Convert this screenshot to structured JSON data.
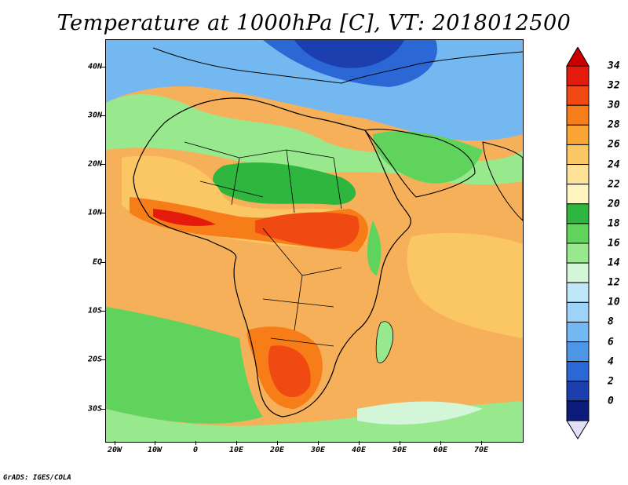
{
  "title": "Temperature at 1000hPa [C], VT: 2018012500",
  "credit": "GrADS: IGES/COLA",
  "map": {
    "lat_ticks": [
      "40N",
      "30N",
      "20N",
      "10N",
      "EQ",
      "10S",
      "20S",
      "30S"
    ],
    "lon_ticks": [
      "20W",
      "10W",
      "0",
      "10E",
      "20E",
      "30E",
      "40E",
      "50E",
      "60E",
      "70E"
    ],
    "lat_values": [
      40,
      30,
      20,
      10,
      0,
      -10,
      -20,
      -30
    ],
    "lon_values": [
      -20,
      -10,
      0,
      10,
      20,
      30,
      40,
      50,
      60,
      70
    ],
    "lon_range": [
      -22,
      80
    ],
    "lat_range": [
      -37,
      45
    ]
  },
  "colorbar": {
    "labels": [
      "34",
      "32",
      "30",
      "28",
      "26",
      "24",
      "22",
      "20",
      "18",
      "16",
      "14",
      "12",
      "10",
      "8",
      "6",
      "4",
      "2",
      "0"
    ],
    "colors": [
      "#e41a0c",
      "#f04a12",
      "#f77d18",
      "#f9a535",
      "#fbc765",
      "#fde297",
      "#fff5c3",
      "#2fb63e",
      "#5fd35c",
      "#98e88e",
      "#d3f5d8",
      "#bfe7f8",
      "#9dd3f6",
      "#73b8f0",
      "#4d95e6",
      "#2b68d6",
      "#1b3fae",
      "#0c1b7a"
    ],
    "over_color": "#cc0000",
    "under_color": "#e0e0f8"
  }
}
